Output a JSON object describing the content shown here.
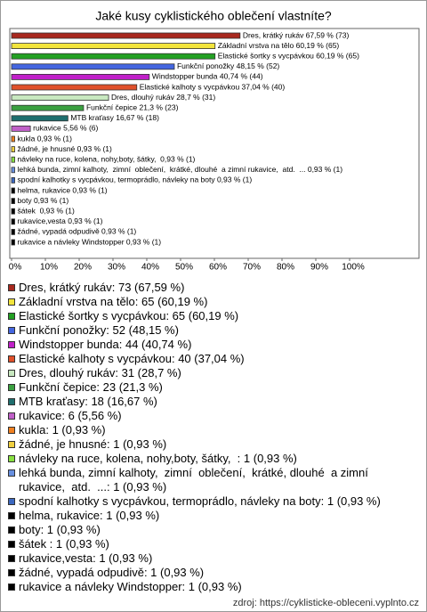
{
  "chart_data": {
    "type": "barh",
    "title": "Jaké kusy cyklistického oblečení vlastníte?",
    "values": [
      67.59,
      60.19,
      60.19,
      48.15,
      40.74,
      37.04,
      28.7,
      21.3,
      16.67,
      5.56,
      0.93,
      0.93,
      0.93,
      0.93,
      0.93,
      0.93,
      0.93,
      0.93,
      0.93,
      0.93,
      0.93
    ],
    "value_labels": [
      "Dres, krátký rukáv 67,59 % (73)",
      "Základní vrstva na tělo 60,19 % (65)",
      "Elastické šortky s vycpávkou 60,19 % (65)",
      "Funkční ponožky 48,15 % (52)",
      "Windstopper bunda 40,74 % (44)",
      "Elastické kalhoty s vycpávkou 37,04 % (40)",
      "Dres, dlouhý rukáv 28,7 % (31)",
      "Funkční čepice 21,3 % (23)",
      "MTB kraťasy 16,67 % (18)",
      "rukavice 5,56 % (6)",
      "kukla 0,93 % (1)",
      "žádné, je hnusné 0,93 % (1)",
      "návleky na ruce, kolena, nohy,boty, šátky,  0,93 % (1)",
      "lehká bunda, zimní kalhoty,  zimní  oblečení,  krátké, dlouhé  a zimní rukavice,  atd.  ... 0,93 % (1)",
      "spodní kalhotky s vycpávkou, termoprádlo, návleky na boty 0,93 % (1)",
      "helma, rukavice 0,93 % (1)",
      "boty 0,93 % (1)",
      "šátek  0,93 % (1)",
      "rukavice,vesta 0,93 % (1)",
      "žádné, vypadá odpudivě 0,93 % (1)",
      "rukavice a návleky Windstopper 0,93 % (1)"
    ],
    "legend": [
      "Dres, krátký rukáv: 73 (67,59 %)",
      "Základní vrstva na tělo: 65 (60,19 %)",
      "Elastické šortky s vycpávkou: 65 (60,19 %)",
      "Funkční ponožky: 52 (48,15 %)",
      "Windstopper bunda: 44 (40,74 %)",
      "Elastické kalhoty s vycpávkou: 40 (37,04 %)",
      "Dres, dlouhý rukáv: 31 (28,7 %)",
      "Funkční čepice: 23 (21,3 %)",
      "MTB kraťasy: 18 (16,67 %)",
      "rukavice: 6 (5,56 %)",
      "kukla: 1 (0,93 %)",
      "žádné, je hnusné: 1 (0,93 %)",
      "návleky na ruce, kolena, nohy,boty, šátky,  : 1 (0,93 %)",
      "lehká bunda, zimní kalhoty,  zimní  oblečení,  krátké, dlouhé  a zimní rukavice,  atd.  ...: 1 (0,93 %)",
      "spodní kalhotky s vycpávkou, termoprádlo, návleky na boty: 1 (0,93 %)",
      "helma, rukavice: 1 (0,93 %)",
      "boty: 1 (0,93 %)",
      "šátek : 1 (0,93 %)",
      "rukavice,vesta: 1 (0,93 %)",
      "žádné, vypadá odpudivě: 1 (0,93 %)",
      "rukavice a návleky Windstopper: 1 (0,93 %)"
    ],
    "colors": [
      "#a8281e",
      "#f2e43c",
      "#22a022",
      "#4466e0",
      "#c020c8",
      "#e0502a",
      "#c8e8c0",
      "#3aa040",
      "#1e6e6e",
      "#c060c8",
      "#f08020",
      "#f0d040",
      "#88e040",
      "#6890e0",
      "#3c68c0",
      "#000000",
      "#000000",
      "#000000",
      "#000000",
      "#000000",
      "#000000"
    ],
    "xlim": [
      0,
      100
    ],
    "xticks": [
      {
        "value": 0,
        "label": "0%"
      },
      {
        "value": 10,
        "label": "10%"
      },
      {
        "value": 20,
        "label": "20%"
      },
      {
        "value": 30,
        "label": "30%"
      },
      {
        "value": 40,
        "label": "40%"
      },
      {
        "value": 50,
        "label": "50%"
      },
      {
        "value": 60,
        "label": "60%"
      },
      {
        "value": 70,
        "label": "70%"
      },
      {
        "value": 80,
        "label": "80%"
      },
      {
        "value": 90,
        "label": "90%"
      },
      {
        "value": 100,
        "label": "100%"
      }
    ],
    "source": "zdroj: https://cyklisticke-obleceni.vyplnto.cz"
  }
}
